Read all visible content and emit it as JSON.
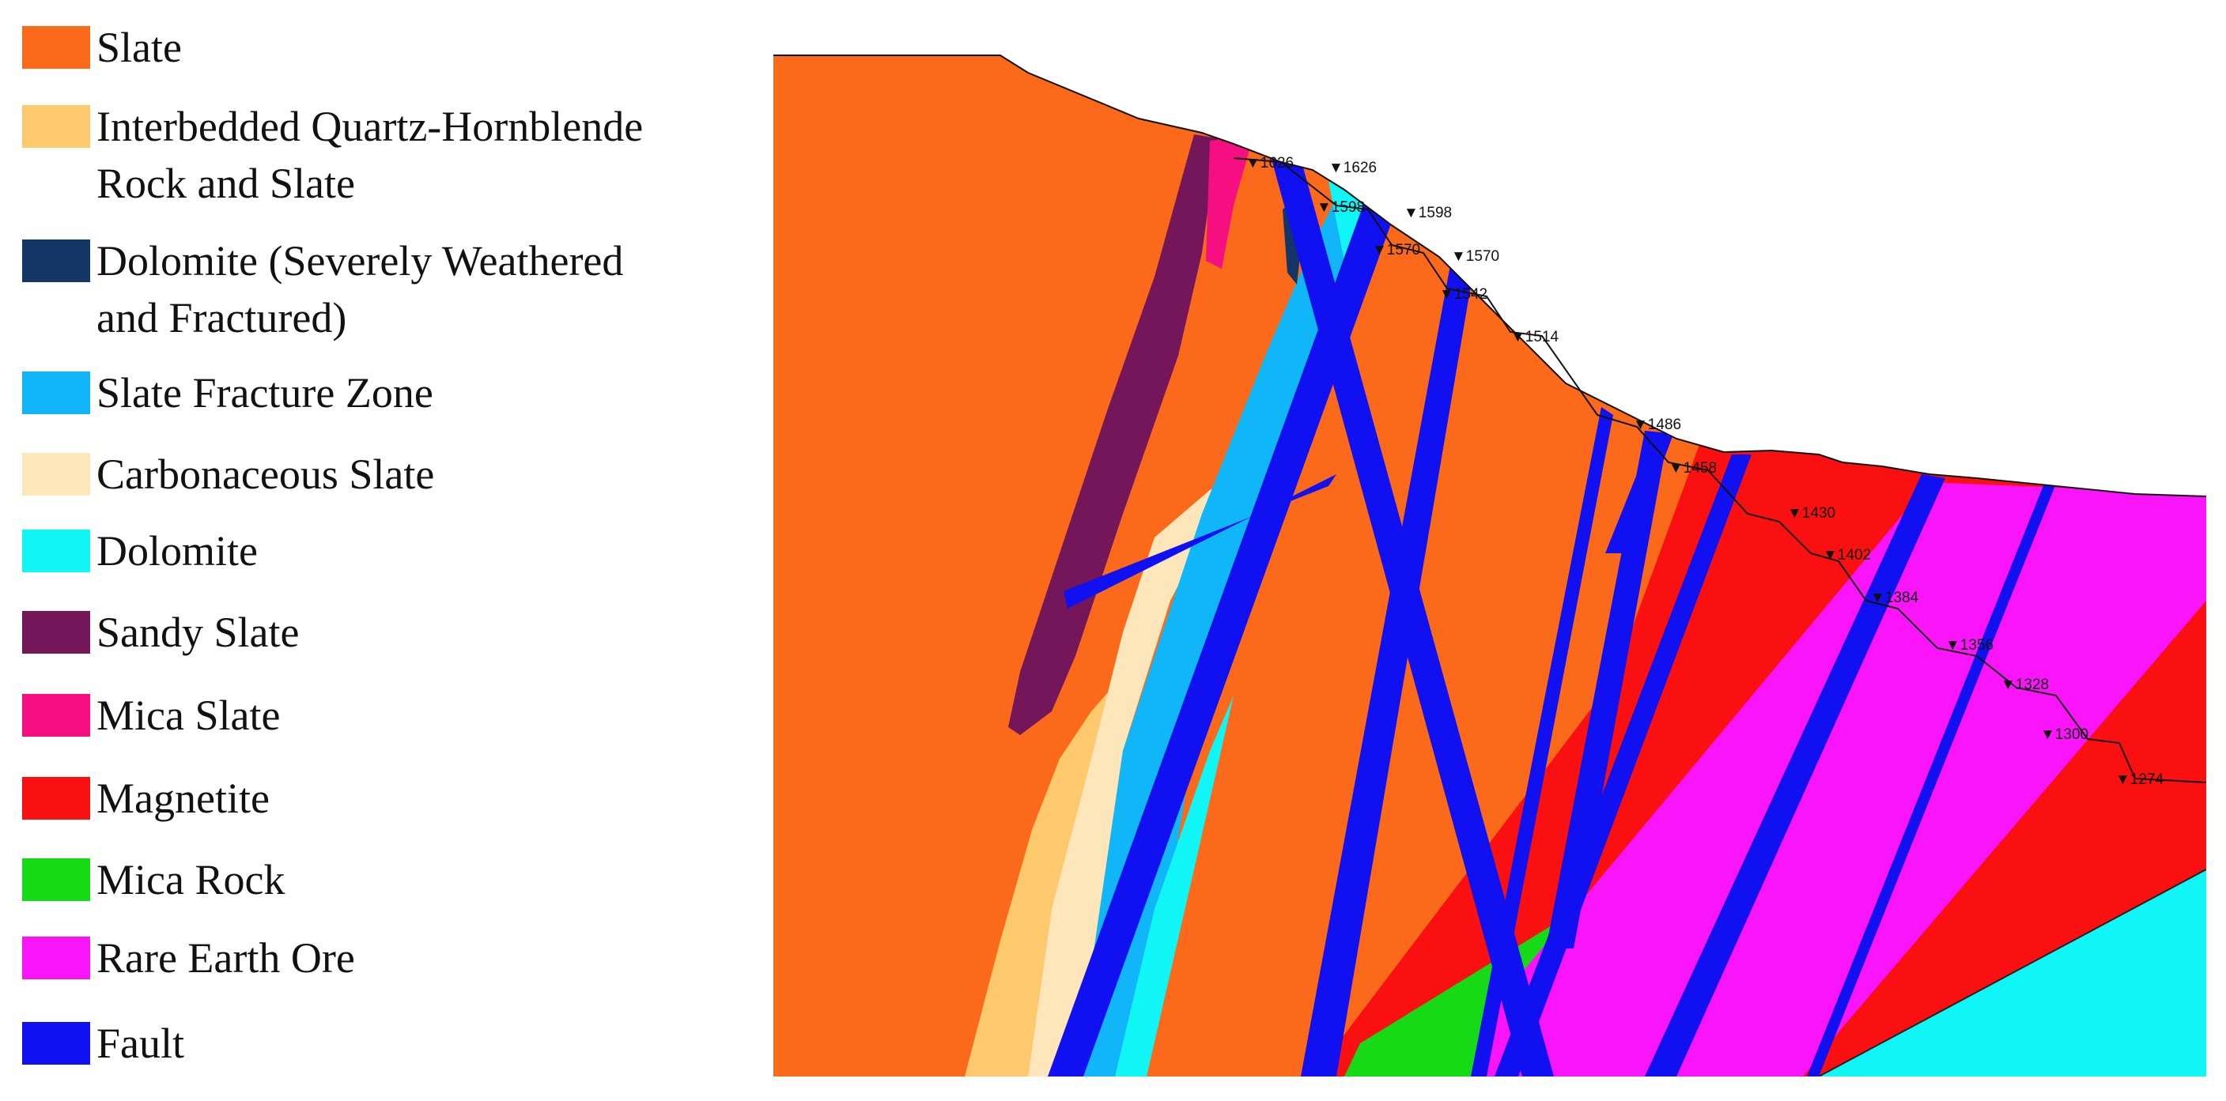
{
  "legend": {
    "items": [
      {
        "id": "slate",
        "lines": [
          "Slate"
        ],
        "color": "#FA6A1A"
      },
      {
        "id": "quartz-hornblende",
        "lines": [
          "Interbedded Quartz-Hornblende",
          "Rock and Slate"
        ],
        "color": "#FDC96C"
      },
      {
        "id": "dolomite-weathered",
        "lines": [
          "Dolomite (Severely Weathered",
          "and Fractured)"
        ],
        "color": "#143566"
      },
      {
        "id": "slate-fracture-zone",
        "lines": [
          "Slate Fracture Zone"
        ],
        "color": "#10B6F8"
      },
      {
        "id": "carbonaceous-slate",
        "lines": [
          "Carbonaceous Slate"
        ],
        "color": "#FDE6B9"
      },
      {
        "id": "dolomite",
        "lines": [
          "Dolomite"
        ],
        "color": "#10F5F5"
      },
      {
        "id": "sandy-slate",
        "lines": [
          "Sandy Slate"
        ],
        "color": "#741659"
      },
      {
        "id": "mica-slate",
        "lines": [
          "Mica Slate"
        ],
        "color": "#F50F80"
      },
      {
        "id": "magnetite",
        "lines": [
          "Magnetite"
        ],
        "color": "#FA1010"
      },
      {
        "id": "mica-rock",
        "lines": [
          "Mica Rock"
        ],
        "color": "#16DA16"
      },
      {
        "id": "rare-earth-ore",
        "lines": [
          "Rare Earth Ore"
        ],
        "color": "#FA14FA"
      },
      {
        "id": "fault",
        "lines": [
          "Fault"
        ],
        "color": "#1010F0"
      }
    ]
  },
  "elevation_marks": [
    {
      "label": "1626",
      "symbol": "▼"
    },
    {
      "label": "1626",
      "symbol": "▼"
    },
    {
      "label": "1598",
      "symbol": "▼"
    },
    {
      "label": "1598",
      "symbol": "▼"
    },
    {
      "label": "1570",
      "symbol": "▼"
    },
    {
      "label": "1570",
      "symbol": "▼"
    },
    {
      "label": "1542",
      "symbol": "▼"
    },
    {
      "label": "1514",
      "symbol": "▼"
    },
    {
      "label": "1486",
      "symbol": "▼"
    },
    {
      "label": "1458",
      "symbol": "▼"
    },
    {
      "label": "1430",
      "symbol": "▼"
    },
    {
      "label": "1402",
      "symbol": "▼"
    },
    {
      "label": "1384",
      "symbol": "▼"
    },
    {
      "label": "1356",
      "symbol": "▼"
    },
    {
      "label": "1328",
      "symbol": "▼"
    },
    {
      "label": "1300",
      "symbol": "▼"
    },
    {
      "label": "1274",
      "symbol": "▼"
    }
  ]
}
